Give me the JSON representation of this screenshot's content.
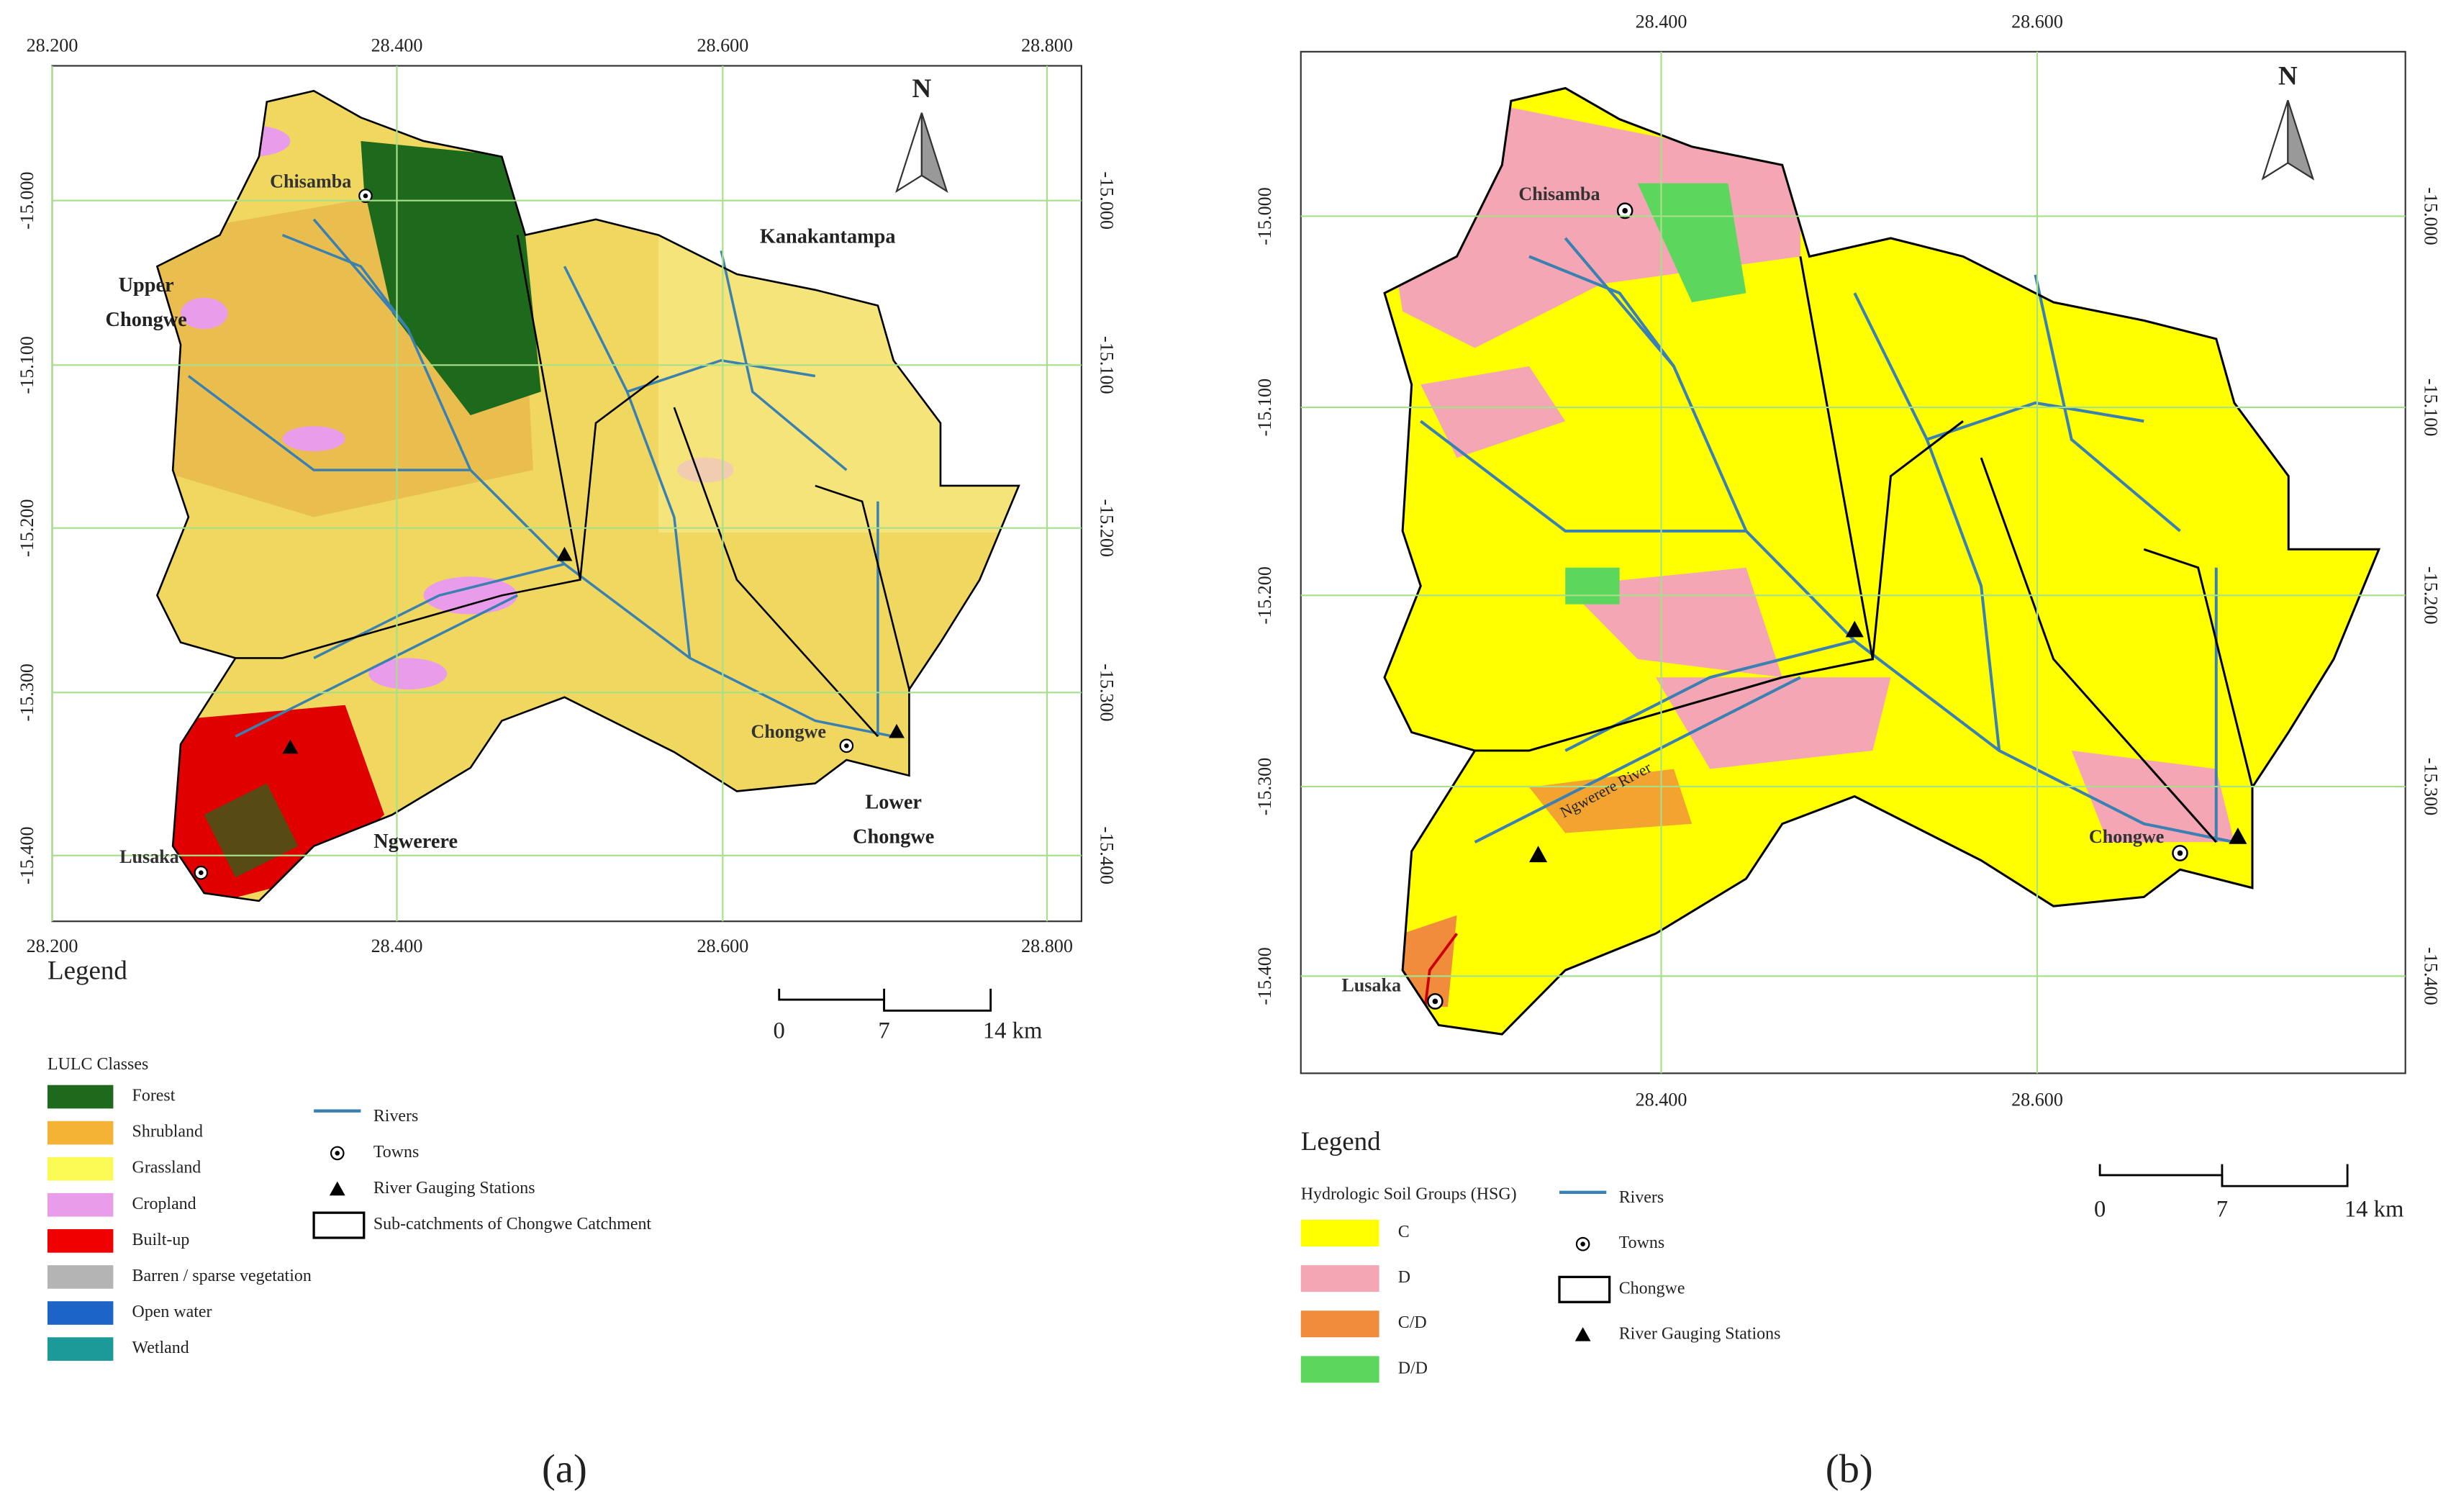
{
  "panels": [
    {
      "label": "(a)",
      "north": "N",
      "lon_ticks": [
        "28.200",
        "28.400",
        "28.600",
        "28.800"
      ],
      "lat_ticks": [
        "-15.000",
        "-15.100",
        "-15.200",
        "-15.300",
        "-15.400"
      ],
      "places": [
        {
          "lines": [
            "Chisamba"
          ]
        },
        {
          "lines": [
            "Kanakantampa"
          ]
        },
        {
          "lines": [
            "Upper",
            "Chongwe"
          ]
        },
        {
          "lines": [
            "Ngwerere"
          ]
        },
        {
          "lines": [
            "Lusaka"
          ]
        },
        {
          "lines": [
            "Chongwe"
          ]
        },
        {
          "lines": [
            "Lower",
            "Chongwe"
          ]
        }
      ],
      "legend": {
        "title": "Legend",
        "classes_title": "LULC Classes",
        "classes": [
          {
            "label": "Forest",
            "color": "#1d6a1d"
          },
          {
            "label": "Shrubland",
            "color": "#f5b335"
          },
          {
            "label": "Grassland",
            "color": "#fafa55"
          },
          {
            "label": "Cropland",
            "color": "#e99ce9"
          },
          {
            "label": "Built-up",
            "color": "#f00000"
          },
          {
            "label": "Barren / sparse vegetation",
            "color": "#b4b4b4"
          },
          {
            "label": "Open water",
            "color": "#1c64c8"
          },
          {
            "label": "Wetland",
            "color": "#1c9a9a"
          }
        ],
        "symbols": [
          "Rivers",
          "Towns",
          "River Gauging Stations",
          "Sub-catchments of Chongwe Catchment"
        ]
      },
      "scale_bar": [
        "0",
        "7",
        "14 km"
      ]
    },
    {
      "label": "(b)",
      "north": "N",
      "lon_ticks": [
        "28.400",
        "28.600"
      ],
      "lat_ticks": [
        "-15.000",
        "-15.100",
        "-15.200",
        "-15.300",
        "-15.400"
      ],
      "places": [
        {
          "lines": [
            "Chisamba"
          ]
        },
        {
          "lines": [
            "Ngwerere River"
          ]
        },
        {
          "lines": [
            "Lusaka"
          ]
        },
        {
          "lines": [
            "Chongwe"
          ]
        }
      ],
      "legend": {
        "title": "Legend",
        "classes_title": "Hydrologic Soil Groups (HSG)",
        "classes": [
          {
            "label": "C",
            "color": "#ffff00"
          },
          {
            "label": "D",
            "color": "#f4a6b4"
          },
          {
            "label": "C/D",
            "color": "#f08c3c"
          },
          {
            "label": "D/D",
            "color": "#5cd65c"
          }
        ],
        "symbols": [
          "Rivers",
          "Towns",
          "Chongwe",
          "River Gauging Stations"
        ]
      },
      "scale_bar": [
        "0",
        "7",
        "14 km"
      ]
    }
  ]
}
